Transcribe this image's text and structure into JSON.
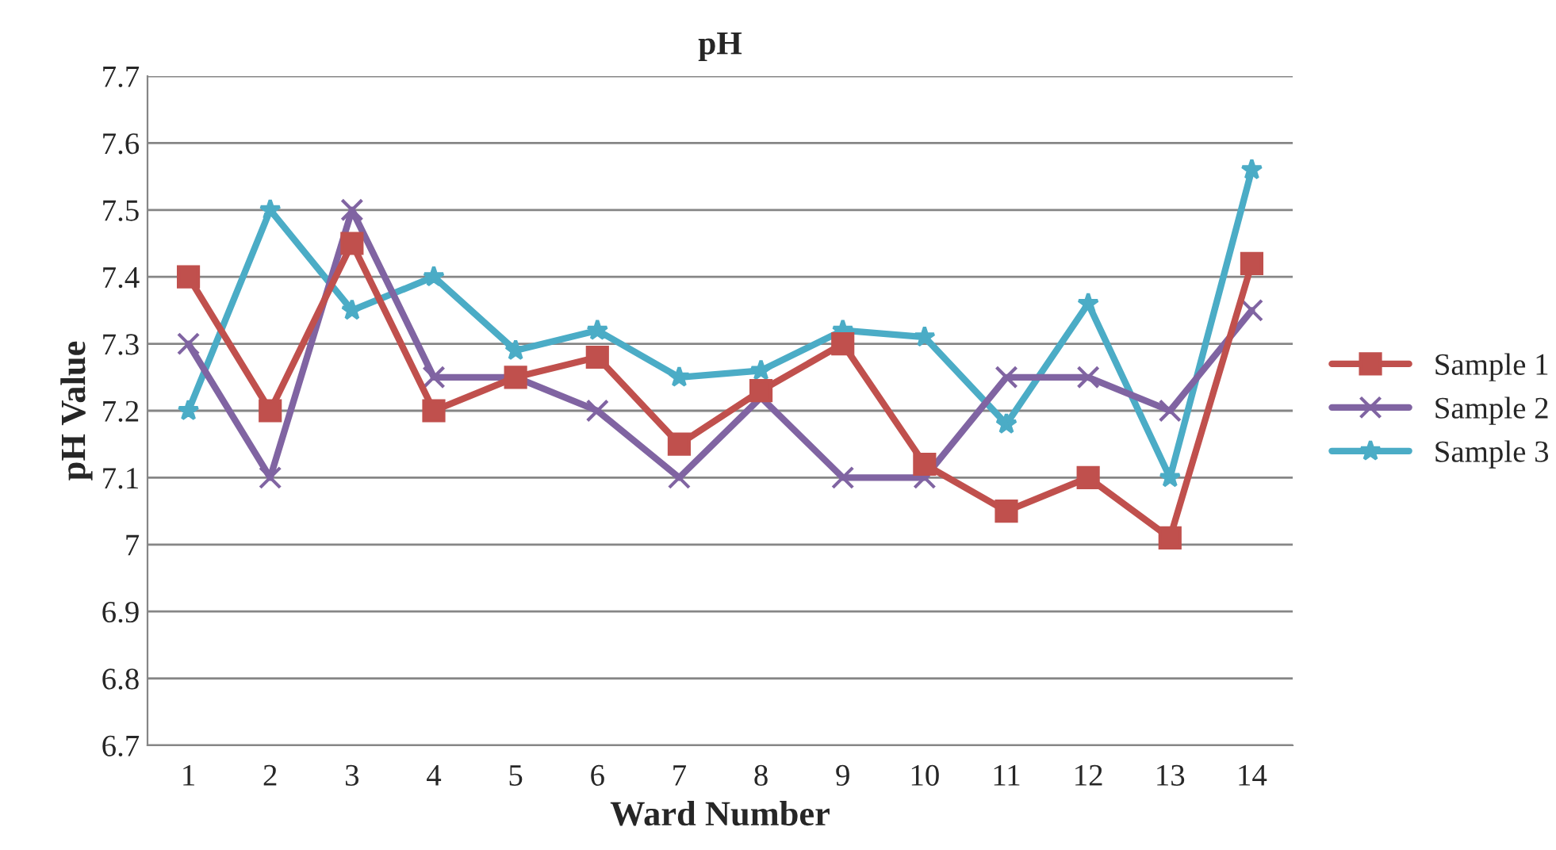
{
  "chart_data": {
    "type": "line",
    "title": "pH",
    "xlabel": "Ward Number",
    "ylabel": "pH Value",
    "categories": [
      "1",
      "2",
      "3",
      "4",
      "5",
      "6",
      "7",
      "8",
      "9",
      "10",
      "11",
      "12",
      "13",
      "14"
    ],
    "ylim": [
      6.7,
      7.7
    ],
    "yticks": [
      6.7,
      6.8,
      6.9,
      7,
      7.1,
      7.2,
      7.3,
      7.4,
      7.5,
      7.6,
      7.7
    ],
    "grid": "y",
    "legend": "right",
    "line_style": "solid",
    "series": [
      {
        "name": "Sample 1",
        "color": "#c0504d",
        "marker": "square",
        "values": [
          7.4,
          7.2,
          7.45,
          7.2,
          7.25,
          7.28,
          7.15,
          7.23,
          7.3,
          7.12,
          7.05,
          7.1,
          7.01,
          7.42
        ]
      },
      {
        "name": "Sample 2",
        "color": "#8064a2",
        "marker": "cross",
        "values": [
          7.3,
          7.1,
          7.5,
          7.25,
          7.25,
          7.2,
          7.1,
          7.22,
          7.1,
          7.1,
          7.25,
          7.25,
          7.2,
          7.35
        ]
      },
      {
        "name": "Sample 3",
        "color": "#4bacc6",
        "marker": "star",
        "values": [
          7.2,
          7.5,
          7.35,
          7.4,
          7.29,
          7.32,
          7.25,
          7.26,
          7.32,
          7.31,
          7.18,
          7.36,
          7.1,
          7.56
        ]
      }
    ]
  }
}
